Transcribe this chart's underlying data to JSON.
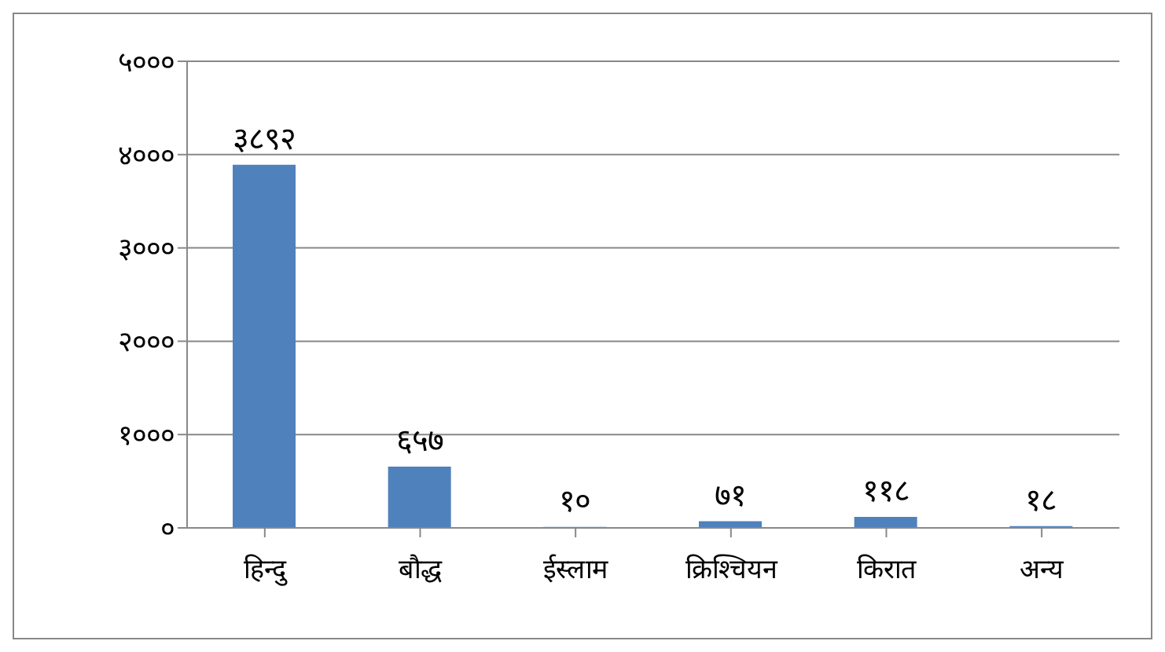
{
  "chart_data": {
    "type": "bar",
    "categories": [
      "हिन्दु",
      "बौद्ध",
      "ईस्लाम",
      "क्रिश्चियन",
      "किरात",
      "अन्य"
    ],
    "values": [
      3892,
      657,
      10,
      71,
      118,
      18
    ],
    "value_labels": [
      "३८९२",
      "६५७",
      "१०",
      "७१",
      "११८",
      "१८"
    ],
    "color": "#4f81bd",
    "ylim": [
      0,
      5000
    ],
    "yticks": [
      {
        "value": 0,
        "label": "०"
      },
      {
        "value": 1000,
        "label": "१०००"
      },
      {
        "value": 2000,
        "label": "२०००"
      },
      {
        "value": 3000,
        "label": "३०००"
      },
      {
        "value": 4000,
        "label": "४०००"
      },
      {
        "value": 5000,
        "label": "५०००"
      }
    ],
    "grid": "y",
    "legend": false
  }
}
